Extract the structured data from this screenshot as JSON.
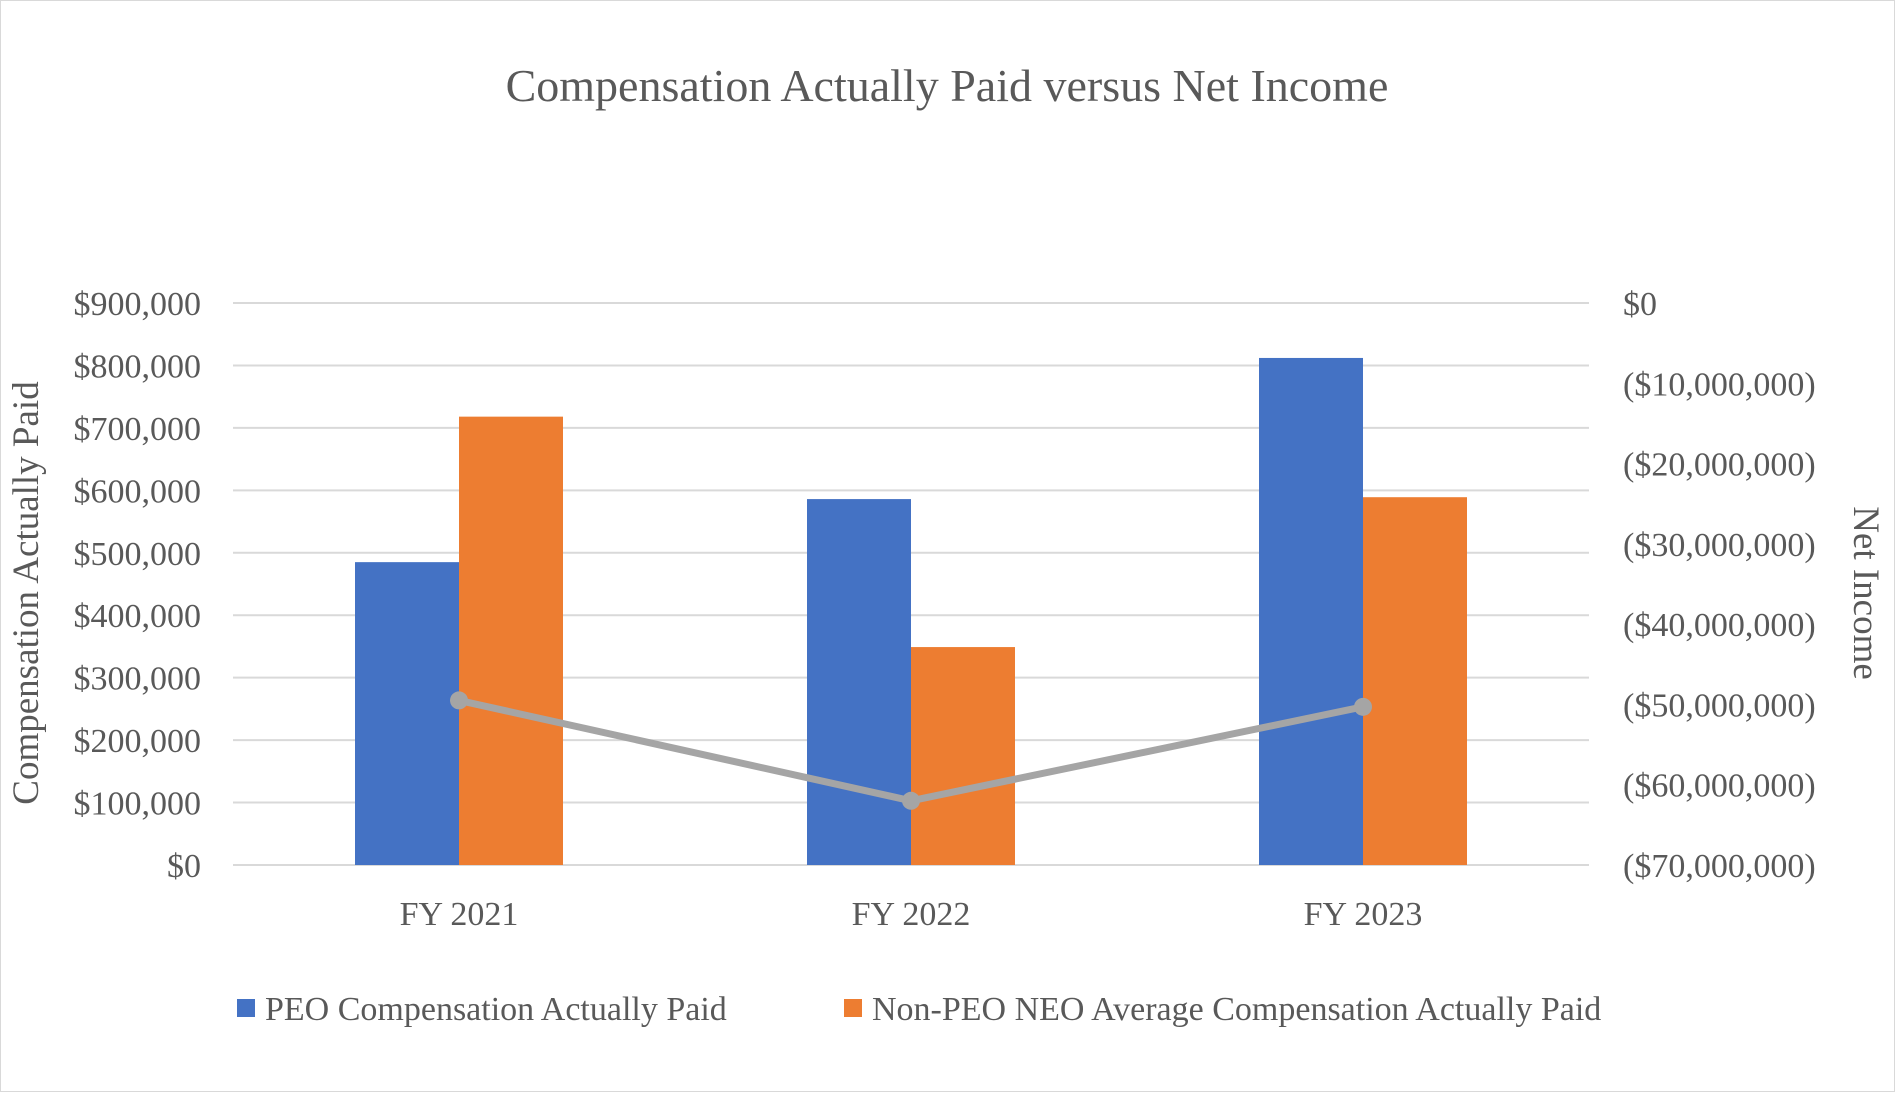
{
  "chart_data": {
    "type": "bar",
    "title": "Compensation Actually Paid versus Net Income",
    "categories": [
      "FY 2021",
      "FY 2022",
      "FY 2023"
    ],
    "series": [
      {
        "name": "PEO Compensation Actually Paid",
        "axis": "left",
        "kind": "bar",
        "color": "#4472C4",
        "values": [
          485000,
          586000,
          812000
        ]
      },
      {
        "name": "Non-PEO NEO Average Compensation Actually Paid",
        "axis": "left",
        "kind": "bar",
        "color": "#ED7D31",
        "values": [
          718000,
          349000,
          589000
        ]
      },
      {
        "name": "Net Income",
        "axis": "right",
        "kind": "line",
        "color": "#A5A5A5",
        "values": [
          -49500000,
          -62000000,
          -50300000
        ]
      }
    ],
    "y_left": {
      "label": "Compensation Actually Paid",
      "lim": [
        0,
        900000
      ],
      "ticks": [
        0,
        100000,
        200000,
        300000,
        400000,
        500000,
        600000,
        700000,
        800000,
        900000
      ],
      "tick_labels": [
        "$0",
        "$100,000",
        "$200,000",
        "$300,000",
        "$400,000",
        "$500,000",
        "$600,000",
        "$700,000",
        "$800,000",
        "$900,000"
      ]
    },
    "y_right": {
      "label": "Net Income",
      "lim": [
        -70000000,
        0
      ],
      "ticks": [
        0,
        -10000000,
        -20000000,
        -30000000,
        -40000000,
        -50000000,
        -60000000,
        -70000000
      ],
      "tick_labels": [
        "$0",
        "($10,000,000)",
        "($20,000,000)",
        "($30,000,000)",
        "($40,000,000)",
        "($50,000,000)",
        "($60,000,000)",
        "($70,000,000)"
      ]
    },
    "legend": {
      "position": "bottom",
      "entries": [
        "PEO Compensation Actually Paid",
        "Non-PEO NEO Average Compensation Actually Paid"
      ]
    },
    "grid": true,
    "colors": {
      "gridline": "#D9D9D9",
      "text": "#595959"
    }
  }
}
